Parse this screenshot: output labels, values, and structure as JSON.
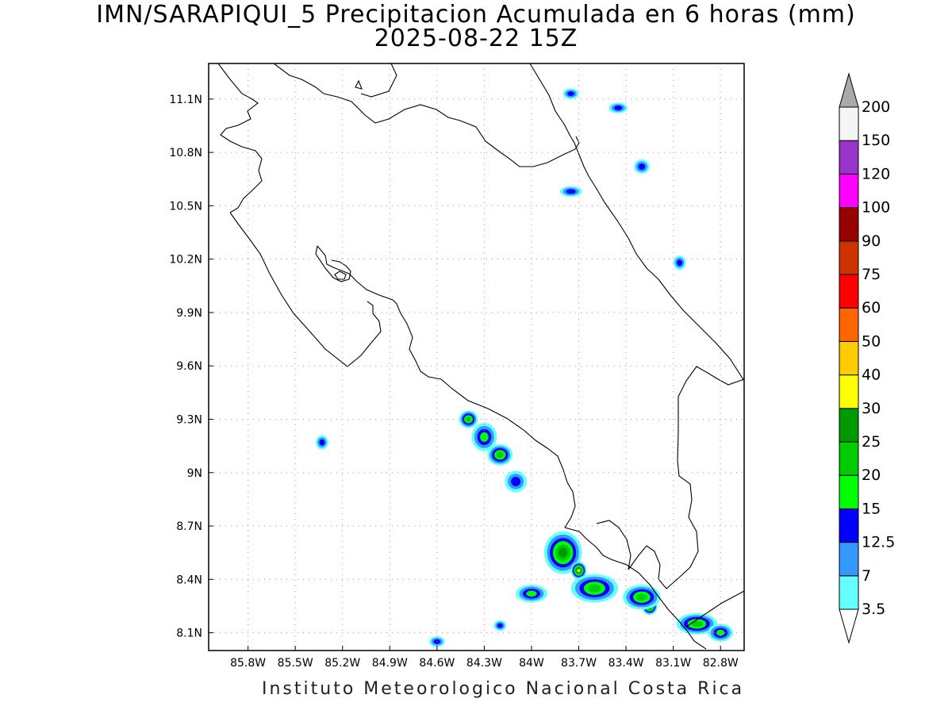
{
  "title": "IMN/SARAPIQUI_5 Precipitacion Acumulada en 6 horas (mm)",
  "subtitle": "2025-08-22 15Z",
  "footer": "Instituto Meteorologico Nacional Costa Rica",
  "map": {
    "lon_range": [
      -86.05,
      -82.65
    ],
    "lat_range": [
      8.0,
      11.3
    ],
    "lon_ticks": [
      {
        "value": -85.8,
        "label": "85.8W"
      },
      {
        "value": -85.5,
        "label": "85.5W"
      },
      {
        "value": -85.2,
        "label": "85.2W"
      },
      {
        "value": -84.9,
        "label": "84.9W"
      },
      {
        "value": -84.6,
        "label": "84.6W"
      },
      {
        "value": -84.3,
        "label": "84.3W"
      },
      {
        "value": -84.0,
        "label": "84W"
      },
      {
        "value": -83.7,
        "label": "83.7W"
      },
      {
        "value": -83.4,
        "label": "83.4W"
      },
      {
        "value": -83.1,
        "label": "83.1W"
      },
      {
        "value": -82.8,
        "label": "82.8W"
      }
    ],
    "lat_ticks": [
      {
        "value": 11.1,
        "label": "11.1N"
      },
      {
        "value": 10.8,
        "label": "10.8N"
      },
      {
        "value": 10.5,
        "label": "10.5N"
      },
      {
        "value": 10.2,
        "label": "10.2N"
      },
      {
        "value": 9.9,
        "label": "9.9N"
      },
      {
        "value": 9.6,
        "label": "9.6N"
      },
      {
        "value": 9.3,
        "label": "9.3N"
      },
      {
        "value": 9.0,
        "label": "9N"
      },
      {
        "value": 8.7,
        "label": "8.7N"
      },
      {
        "value": 8.4,
        "label": "8.4N"
      },
      {
        "value": 8.1,
        "label": "8.1N"
      }
    ],
    "grid": true
  },
  "colorbar": {
    "levels": [
      {
        "label": "3.5",
        "color": "#66ffff"
      },
      {
        "label": "7",
        "color": "#3399ff"
      },
      {
        "label": "12.5",
        "color": "#0000ff"
      },
      {
        "label": "15",
        "color": "#00ff00"
      },
      {
        "label": "20",
        "color": "#00cc00"
      },
      {
        "label": "25",
        "color": "#009900"
      },
      {
        "label": "30",
        "color": "#ffff00"
      },
      {
        "label": "40",
        "color": "#ffcc00"
      },
      {
        "label": "50",
        "color": "#ff6600"
      },
      {
        "label": "60",
        "color": "#ff0000"
      },
      {
        "label": "75",
        "color": "#cc3300"
      },
      {
        "label": "90",
        "color": "#990000"
      },
      {
        "label": "100",
        "color": "#ff00ff"
      },
      {
        "label": "120",
        "color": "#9933cc"
      },
      {
        "label": "150",
        "color": "#f5f5f5"
      },
      {
        "label": "200",
        "color": "#aaaaaa"
      }
    ]
  },
  "precip_cells": [
    {
      "lon": -84.4,
      "lat": 9.3,
      "level": 4,
      "rx": 0.06,
      "ry": 0.05
    },
    {
      "lon": -84.3,
      "lat": 9.2,
      "level": 3,
      "rx": 0.08,
      "ry": 0.08
    },
    {
      "lon": -84.2,
      "lat": 9.1,
      "level": 4,
      "rx": 0.08,
      "ry": 0.06
    },
    {
      "lon": -84.1,
      "lat": 8.95,
      "level": 2,
      "rx": 0.07,
      "ry": 0.06
    },
    {
      "lon": -83.8,
      "lat": 8.55,
      "level": 5,
      "rx": 0.12,
      "ry": 0.12
    },
    {
      "lon": -83.7,
      "lat": 8.45,
      "level": 6,
      "rx": 0.05,
      "ry": 0.05
    },
    {
      "lon": -83.6,
      "lat": 8.35,
      "level": 4,
      "rx": 0.15,
      "ry": 0.08
    },
    {
      "lon": -83.25,
      "lat": 8.25,
      "level": 6,
      "rx": 0.05,
      "ry": 0.05
    },
    {
      "lon": -83.3,
      "lat": 8.3,
      "level": 4,
      "rx": 0.12,
      "ry": 0.07
    },
    {
      "lon": -82.95,
      "lat": 8.15,
      "level": 4,
      "rx": 0.13,
      "ry": 0.06
    },
    {
      "lon": -82.8,
      "lat": 8.1,
      "level": 3,
      "rx": 0.08,
      "ry": 0.05
    },
    {
      "lon": -84.0,
      "lat": 8.32,
      "level": 3,
      "rx": 0.1,
      "ry": 0.05
    },
    {
      "lon": -83.75,
      "lat": 11.13,
      "level": 2,
      "rx": 0.05,
      "ry": 0.03
    },
    {
      "lon": -83.45,
      "lat": 11.05,
      "level": 2,
      "rx": 0.06,
      "ry": 0.03
    },
    {
      "lon": -83.75,
      "lat": 10.58,
      "level": 2,
      "rx": 0.07,
      "ry": 0.03
    },
    {
      "lon": -83.3,
      "lat": 10.72,
      "level": 2,
      "rx": 0.05,
      "ry": 0.04
    },
    {
      "lon": -83.06,
      "lat": 10.18,
      "level": 2,
      "rx": 0.04,
      "ry": 0.04
    },
    {
      "lon": -85.33,
      "lat": 9.17,
      "level": 2,
      "rx": 0.04,
      "ry": 0.04
    },
    {
      "lon": -84.6,
      "lat": 8.05,
      "level": 2,
      "rx": 0.05,
      "ry": 0.03
    },
    {
      "lon": -84.2,
      "lat": 8.14,
      "level": 2,
      "rx": 0.04,
      "ry": 0.03
    }
  ]
}
